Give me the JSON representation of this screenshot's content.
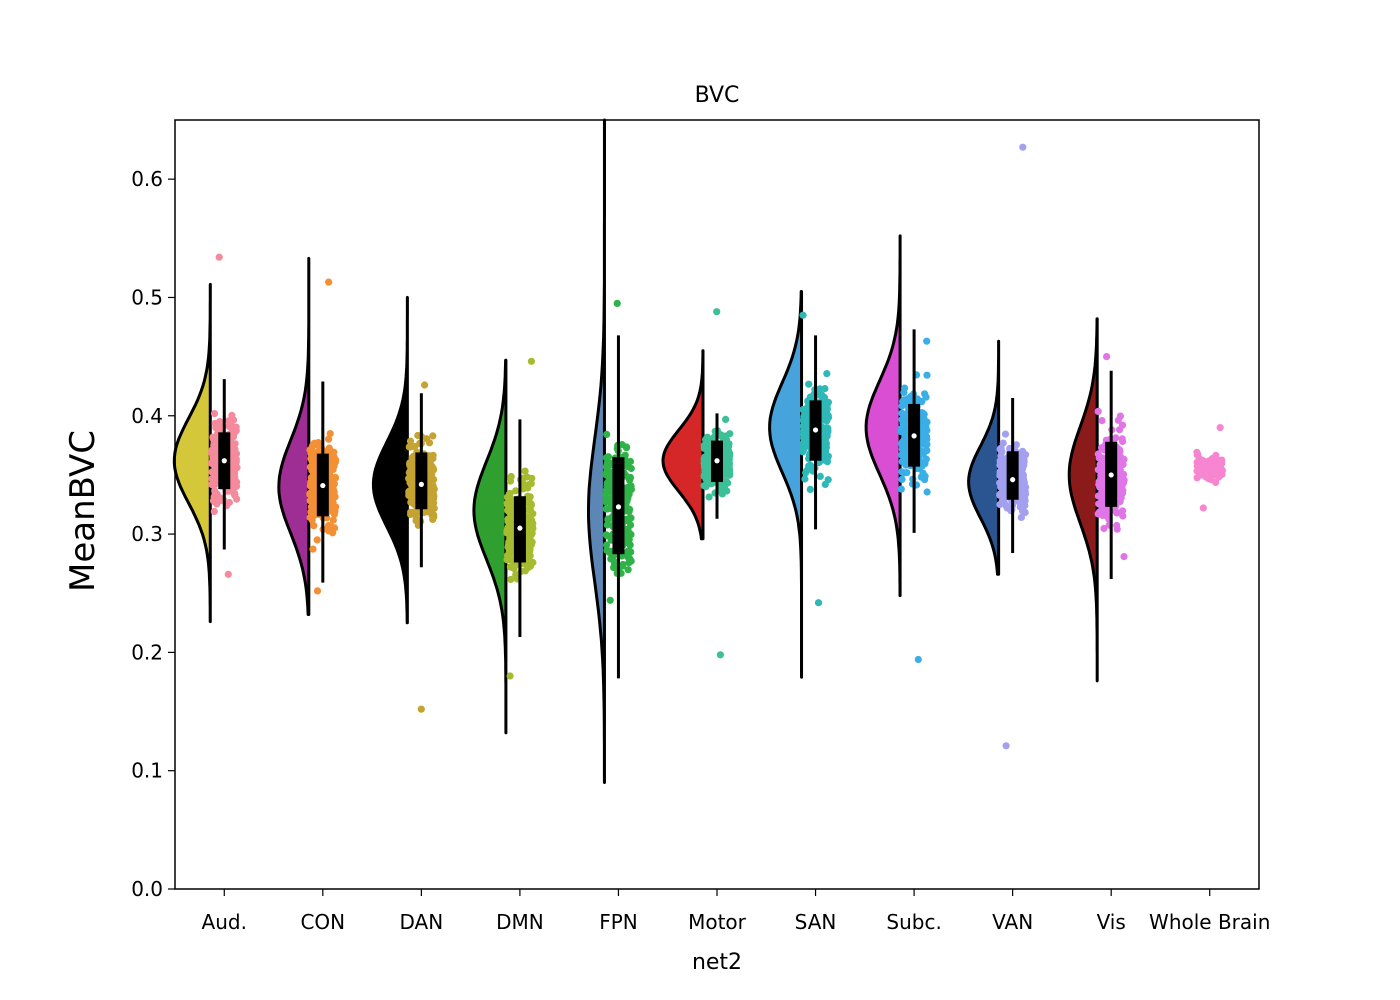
{
  "chart_data": {
    "type": "raincloud",
    "title": "BVC",
    "xlabel": "net2",
    "ylabel": "MeanBVC",
    "ylim": [
      0.0,
      0.65
    ],
    "yticks": [
      0.0,
      0.1,
      0.2,
      0.3,
      0.4,
      0.5,
      0.6
    ],
    "ytick_labels": [
      "0.0",
      "0.1",
      "0.2",
      "0.3",
      "0.4",
      "0.5",
      "0.6"
    ],
    "categories": [
      "Aud.",
      "CON",
      "DAN",
      "DMN",
      "FPN",
      "Motor",
      "SAN",
      "Subc.",
      "VAN",
      "Vis",
      "Whole Brain"
    ],
    "series": [
      {
        "name": "Aud.",
        "violin_color": "#d4c83a",
        "point_color": "#f48a9c",
        "min": 0.226,
        "max": 0.511,
        "q1": 0.338,
        "median": 0.362,
        "q3": 0.386,
        "whisker_low": 0.287,
        "whisker_high": 0.431,
        "point_min": 0.266,
        "point_max": 0.534,
        "density_mode": 0.362,
        "density_width": 0.9
      },
      {
        "name": "CON",
        "violin_color": "#9e2e93",
        "point_color": "#f39035",
        "min": 0.232,
        "max": 0.533,
        "q1": 0.315,
        "median": 0.341,
        "q3": 0.368,
        "whisker_low": 0.259,
        "whisker_high": 0.429,
        "point_min": 0.252,
        "point_max": 0.513,
        "density_mode": 0.34,
        "density_width": 0.75
      },
      {
        "name": "DAN",
        "violin_color": "#000000",
        "point_color": "#c4a332",
        "min": 0.225,
        "max": 0.5,
        "q1": 0.321,
        "median": 0.342,
        "q3": 0.369,
        "whisker_low": 0.272,
        "whisker_high": 0.419,
        "point_min": 0.152,
        "point_max": 0.426,
        "density_mode": 0.342,
        "density_width": 0.85
      },
      {
        "name": "DMN",
        "violin_color": "#2fa02f",
        "point_color": "#a7bb30",
        "min": 0.132,
        "max": 0.447,
        "q1": 0.276,
        "median": 0.305,
        "q3": 0.332,
        "whisker_low": 0.213,
        "whisker_high": 0.397,
        "point_min": 0.18,
        "point_max": 0.446,
        "density_mode": 0.32,
        "density_width": 0.8
      },
      {
        "name": "FPN",
        "violin_color": "#5c86b6",
        "point_color": "#2fb247",
        "min": 0.09,
        "max": 0.65,
        "q1": 0.283,
        "median": 0.323,
        "q3": 0.365,
        "whisker_low": 0.178,
        "whisker_high": 0.468,
        "point_min": 0.244,
        "point_max": 0.495,
        "density_mode": 0.32,
        "density_width": 0.4
      },
      {
        "name": "Motor",
        "violin_color": "#d62728",
        "point_color": "#3dbf98",
        "min": 0.296,
        "max": 0.455,
        "q1": 0.344,
        "median": 0.362,
        "q3": 0.379,
        "whisker_low": 0.313,
        "whisker_high": 0.402,
        "point_min": 0.198,
        "point_max": 0.488,
        "density_mode": 0.362,
        "density_width": 1.0
      },
      {
        "name": "SAN",
        "violin_color": "#47a3dc",
        "point_color": "#2fb8b8",
        "min": 0.179,
        "max": 0.505,
        "q1": 0.362,
        "median": 0.388,
        "q3": 0.413,
        "whisker_low": 0.304,
        "whisker_high": 0.468,
        "point_min": 0.242,
        "point_max": 0.485,
        "density_mode": 0.39,
        "density_width": 0.8
      },
      {
        "name": "Subc.",
        "violin_color": "#d94ed2",
        "point_color": "#3aaee6",
        "min": 0.248,
        "max": 0.552,
        "q1": 0.357,
        "median": 0.383,
        "q3": 0.41,
        "whisker_low": 0.301,
        "whisker_high": 0.473,
        "point_min": 0.194,
        "point_max": 0.463,
        "density_mode": 0.39,
        "density_width": 0.85
      },
      {
        "name": "VAN",
        "violin_color": "#2b5591",
        "point_color": "#a3a0f0",
        "min": 0.266,
        "max": 0.463,
        "q1": 0.329,
        "median": 0.346,
        "q3": 0.37,
        "whisker_low": 0.284,
        "whisker_high": 0.415,
        "point_min": 0.121,
        "point_max": 0.627,
        "density_mode": 0.344,
        "density_width": 0.75
      },
      {
        "name": "Vis",
        "violin_color": "#8b1a1a",
        "point_color": "#e075e8",
        "min": 0.176,
        "max": 0.482,
        "q1": 0.323,
        "median": 0.35,
        "q3": 0.378,
        "whisker_low": 0.262,
        "whisker_high": 0.438,
        "point_min": 0.281,
        "point_max": 0.45,
        "density_mode": 0.35,
        "density_width": 0.7
      },
      {
        "name": "Whole Brain",
        "violin_color": "#f785d0",
        "point_color": "#f785d0",
        "min": 0.322,
        "max": 0.39,
        "q1": 0.35,
        "median": 0.357,
        "q3": 0.364,
        "whisker_low": 0.34,
        "whisker_high": 0.375,
        "point_min": 0.322,
        "point_max": 0.39,
        "density_mode": 0.357,
        "density_width": 0.0
      }
    ]
  }
}
